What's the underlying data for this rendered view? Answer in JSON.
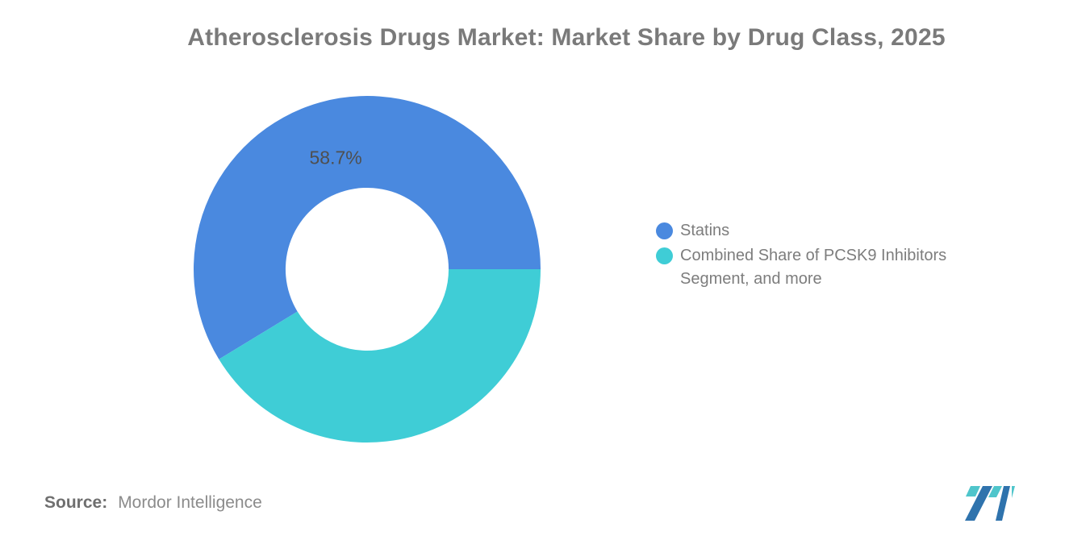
{
  "title": "Atherosclerosis Drugs Market: Market Share by Drug Class, 2025",
  "chart_data": {
    "type": "pie",
    "subtype": "donut",
    "title": "Atherosclerosis Drugs Market: Market Share by Drug Class, 2025",
    "units": "%",
    "inner_radius_ratio": 0.47,
    "start_angle_deg": 0,
    "direction": "counterclockwise",
    "legend_position": "right",
    "slices": [
      {
        "label": "Statins",
        "value": 58.7,
        "display_label": "58.7%",
        "color": "#4A89DF"
      },
      {
        "label": "Combined Share of PCSK9 Inhibitors Segment, and more",
        "value": 41.3,
        "display_label": "",
        "color": "#3FCDD6"
      }
    ]
  },
  "legend": {
    "items": [
      {
        "label": "Statins",
        "color": "#4A89DF"
      },
      {
        "label": "Combined Share of PCSK9 Inhibitors Segment, and more",
        "color": "#3FCDD6"
      }
    ]
  },
  "value_label": {
    "text": "58.7%",
    "color": "#4F4F4F"
  },
  "footer": {
    "source_label": "Source:",
    "source_value": "Mordor Intelligence"
  },
  "logo": {
    "name": "mordor-intelligence-logo",
    "blue": "#2F73AD",
    "teal": "#4FC5CB"
  },
  "colors": {
    "background": "#FFFFFF",
    "title_text": "#7A7A7A",
    "legend_text": "#7D7D7D",
    "value_label_text": "#4F4F4F",
    "source_label_text": "#6F6F6F",
    "source_value_text": "#8B8B8B"
  }
}
